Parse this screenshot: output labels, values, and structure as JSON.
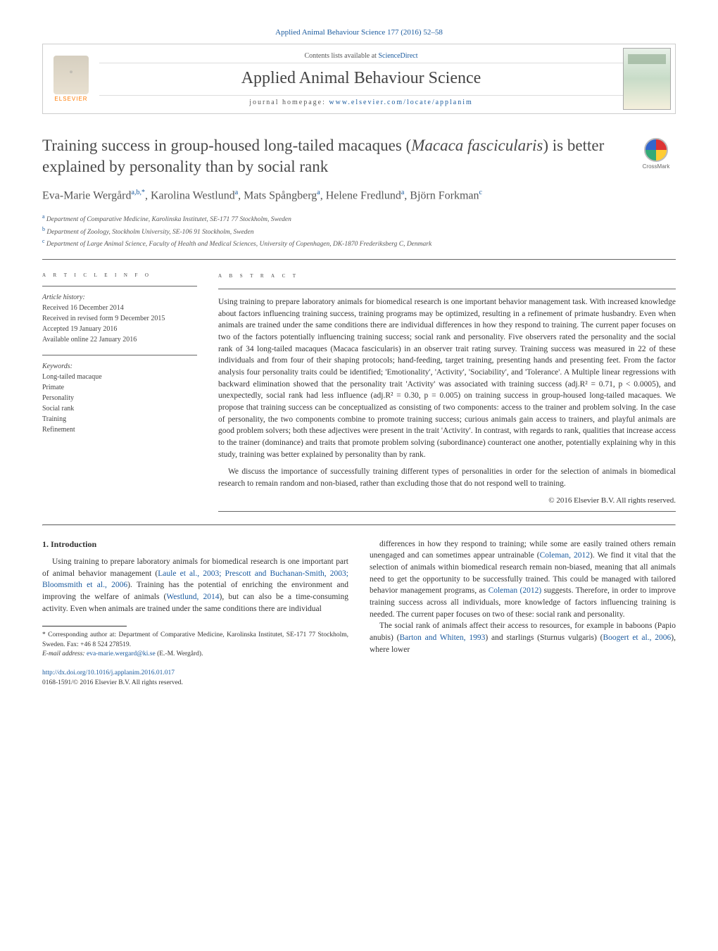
{
  "journal": {
    "top_citation": "Applied Animal Behaviour Science 177 (2016) 52–58",
    "contents_line_prefix": "Contents lists available at ",
    "contents_link": "ScienceDirect",
    "name": "Applied Animal Behaviour Science",
    "homepage_prefix": "journal homepage: ",
    "homepage_url": "www.elsevier.com/locate/applanim",
    "publisher": "ELSEVIER"
  },
  "crossmark": "CrossMark",
  "title": {
    "pre": "Training success in group-housed long-tailed macaques (",
    "italic": "Macaca fascicularis",
    "post": ") is better explained by personality than by social rank"
  },
  "authors_html": "Eva-Marie Wergård<sup>a,b,*</sup>, Karolina Westlund<sup>a</sup>, Mats Spångberg<sup>a</sup>, Helene Fredlund<sup>a</sup>, Björn Forkman<sup>c</sup>",
  "affiliations": {
    "a": "Department of Comparative Medicine, Karolinska Institutet, SE-171 77 Stockholm, Sweden",
    "b": "Department of Zoology, Stockholm University, SE-106 91 Stockholm, Sweden",
    "c": "Department of Large Animal Science, Faculty of Health and Medical Sciences, University of Copenhagen, DK-1870 Frederiksberg C, Denmark"
  },
  "article_info": {
    "heading": "a r t i c l e   i n f o",
    "history_label": "Article history:",
    "history": [
      "Received 16 December 2014",
      "Received in revised form 9 December 2015",
      "Accepted 19 January 2016",
      "Available online 22 January 2016"
    ],
    "keywords_label": "Keywords:",
    "keywords": [
      "Long-tailed macaque",
      "Primate",
      "Personality",
      "Social rank",
      "Training",
      "Refinement"
    ]
  },
  "abstract": {
    "heading": "a b s t r a c t",
    "p1": "Using training to prepare laboratory animals for biomedical research is one important behavior management task. With increased knowledge about factors influencing training success, training programs may be optimized, resulting in a refinement of primate husbandry. Even when animals are trained under the same conditions there are individual differences in how they respond to training. The current paper focuses on two of the factors potentially influencing training success; social rank and personality. Five observers rated the personality and the social rank of 34 long-tailed macaques (Macaca fascicularis) in an observer trait rating survey. Training success was measured in 22 of these individuals and from four of their shaping protocols; hand-feeding, target training, presenting hands and presenting feet. From the factor analysis four personality traits could be identified; 'Emotionality', 'Activity', 'Sociability', and 'Tolerance'. A Multiple linear regressions with backward elimination showed that the personality trait 'Activity' was associated with training success (adj.R² = 0.71, p < 0.0005), and unexpectedly, social rank had less influence (adj.R² = 0.30, p = 0.005) on training success in group-housed long-tailed macaques. We propose that training success can be conceptualized as consisting of two components: access to the trainer and problem solving. In the case of personality, the two components combine to promote training success; curious animals gain access to trainers, and playful animals are good problem solvers; both these adjectives were present in the trait 'Activity'. In contrast, with regards to rank, qualities that increase access to the trainer (dominance) and traits that promote problem solving (subordinance) counteract one another, potentially explaining why in this study, training was better explained by personality than by rank.",
    "p2": "We discuss the importance of successfully training different types of personalities in order for the selection of animals in biomedical research to remain random and non-biased, rather than excluding those that do not respond well to training.",
    "copyright": "© 2016 Elsevier B.V. All rights reserved."
  },
  "intro": {
    "heading": "1. Introduction",
    "p1_a": "Using training to prepare laboratory animals for biomedical research is one important part of animal behavior management (",
    "p1_cite1": "Laule et al., 2003; Prescott and Buchanan-Smith, 2003; Bloomsmith et al., 2006",
    "p1_b": "). Training has the potential of enriching the environment and improving the welfare of animals (",
    "p1_cite2": "Westlund, 2014",
    "p1_c": "), but can also be a time-consuming activity. Even when animals are trained under the same conditions there are individual",
    "p2_a": "differences in how they respond to training; while some are easily trained others remain unengaged and can sometimes appear untrainable (",
    "p2_cite1": "Coleman, 2012",
    "p2_b": "). We find it vital that the selection of animals within biomedical research remain non-biased, meaning that all animals need to get the opportunity to be successfully trained. This could be managed with tailored behavior management programs, as ",
    "p2_cite2": "Coleman (2012)",
    "p2_c": " suggests. Therefore, in order to improve training success across all individuals, more knowledge of factors influencing training is needed. The current paper focuses on two of these: social rank and personality.",
    "p3_a": "The social rank of animals affect their access to resources, for example in baboons (Papio anubis) (",
    "p3_cite1": "Barton and Whiten, 1993",
    "p3_b": ") and starlings (Sturnus vulgaris) (",
    "p3_cite2": "Boogert et al., 2006",
    "p3_c": "), where lower"
  },
  "footnotes": {
    "corr_label": "* Corresponding author at: Department of Comparative Medicine, Karolinska Institutet, SE-171 77 Stockholm, Sweden. Fax: +46 8 524 278519.",
    "email_label": "E-mail address: ",
    "email": "eva-marie.wergard@ki.se",
    "email_who": " (E.-M. Wergård)."
  },
  "doi": {
    "url": "http://dx.doi.org/10.1016/j.applanim.2016.01.017",
    "issn_line": "0168-1591/© 2016 Elsevier B.V. All rights reserved."
  },
  "colors": {
    "link": "#1a5a9e",
    "text": "#333333",
    "muted": "#555555",
    "elsevier_orange": "#ff7a00"
  }
}
